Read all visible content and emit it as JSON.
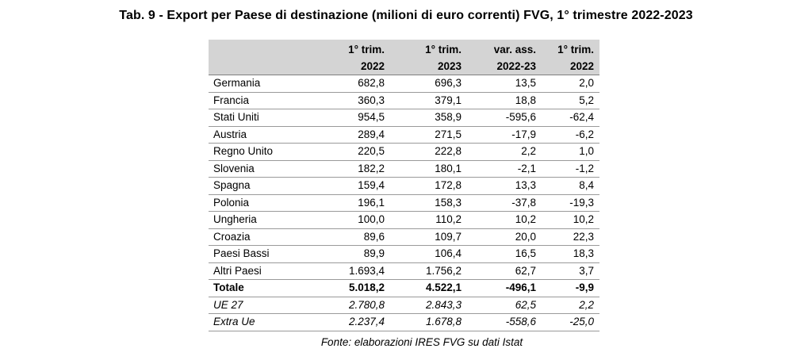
{
  "title": "Tab. 9 - Export per Paese di destinazione (milioni di euro correnti) FVG, 1° trimestre 2022-2023",
  "table": {
    "header_row1": [
      "",
      "1° trim.",
      "1° trim.",
      "var. ass.",
      "1° trim."
    ],
    "header_row2": [
      "",
      "2022",
      "2023",
      "2022-23",
      "2022"
    ],
    "rows": [
      [
        "Germania",
        "682,8",
        "696,3",
        "13,5",
        "2,0"
      ],
      [
        "Francia",
        "360,3",
        "379,1",
        "18,8",
        "5,2"
      ],
      [
        "Stati Uniti",
        "954,5",
        "358,9",
        "-595,6",
        "-62,4"
      ],
      [
        "Austria",
        "289,4",
        "271,5",
        "-17,9",
        "-6,2"
      ],
      [
        "Regno Unito",
        "220,5",
        "222,8",
        "2,2",
        "1,0"
      ],
      [
        "Slovenia",
        "182,2",
        "180,1",
        "-2,1",
        "-1,2"
      ],
      [
        "Spagna",
        "159,4",
        "172,8",
        "13,3",
        "8,4"
      ],
      [
        "Polonia",
        "196,1",
        "158,3",
        "-37,8",
        "-19,3"
      ],
      [
        "Ungheria",
        "100,0",
        "110,2",
        "10,2",
        "10,2"
      ],
      [
        "Croazia",
        "89,6",
        "109,7",
        "20,0",
        "22,3"
      ],
      [
        "Paesi Bassi",
        "89,9",
        "106,4",
        "16,5",
        "18,3"
      ],
      [
        "Altri Paesi",
        "1.693,4",
        "1.756,2",
        "62,7",
        "3,7"
      ]
    ],
    "total": [
      "Totale",
      "5.018,2",
      "4.522,1",
      "-496,1",
      "-9,9"
    ],
    "aggregates": [
      [
        "UE 27",
        "2.780,8",
        "2.843,3",
        "62,5",
        "2,2"
      ],
      [
        "Extra Ue",
        "2.237,4",
        "1.678,8",
        "-558,6",
        "-25,0"
      ]
    ]
  },
  "source": "Fonte: elaborazioni IRES FVG su dati Istat"
}
